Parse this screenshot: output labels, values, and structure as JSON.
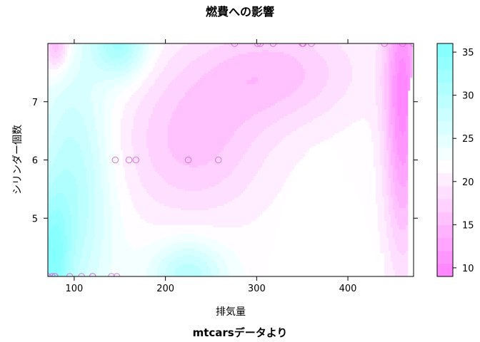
{
  "chart_data": {
    "type": "heatmap",
    "title": "燃費への影響",
    "subtitle": "mtcarsデータより",
    "xlabel": "排気量",
    "ylabel": "シリンダー個数",
    "xlim": [
      71.1,
      472
    ],
    "ylim": [
      4,
      8
    ],
    "x_ticks": [
      100,
      200,
      300,
      400
    ],
    "y_ticks": [
      5,
      6,
      7
    ],
    "colorbar": {
      "ticks": [
        10,
        15,
        20,
        25,
        30,
        35
      ],
      "range": [
        9,
        36
      ],
      "low_color": "#ff80ff",
      "mid_color": "#ffffff",
      "high_color": "#80ffff"
    },
    "points": [
      {
        "x": 71.1,
        "y": 4
      },
      {
        "x": 75.7,
        "y": 4
      },
      {
        "x": 78.7,
        "y": 4
      },
      {
        "x": 79.0,
        "y": 4
      },
      {
        "x": 95.1,
        "y": 4
      },
      {
        "x": 108,
        "y": 4
      },
      {
        "x": 120.1,
        "y": 4
      },
      {
        "x": 120.3,
        "y": 4
      },
      {
        "x": 140.8,
        "y": 4
      },
      {
        "x": 146.7,
        "y": 4
      },
      {
        "x": 145,
        "y": 6
      },
      {
        "x": 160,
        "y": 6
      },
      {
        "x": 167.6,
        "y": 6
      },
      {
        "x": 225,
        "y": 6
      },
      {
        "x": 258,
        "y": 6
      },
      {
        "x": 275.8,
        "y": 8
      },
      {
        "x": 301,
        "y": 8
      },
      {
        "x": 304,
        "y": 8
      },
      {
        "x": 318,
        "y": 8
      },
      {
        "x": 350,
        "y": 8
      },
      {
        "x": 351,
        "y": 8
      },
      {
        "x": 360,
        "y": 8
      },
      {
        "x": 440,
        "y": 8
      },
      {
        "x": 460,
        "y": 8
      },
      {
        "x": 472,
        "y": 8
      }
    ]
  }
}
